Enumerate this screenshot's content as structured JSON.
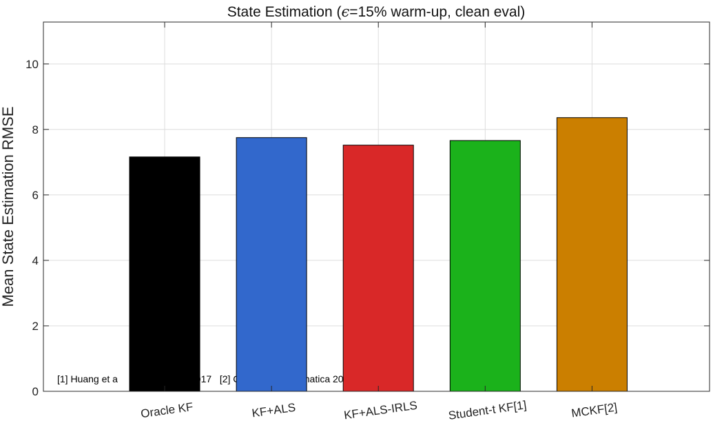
{
  "chart_data": {
    "type": "bar",
    "title_prefix": "State Estimation (",
    "title_symbol": "ϵ",
    "title_suffix": "=15% warm-up, clean eval)",
    "xlabel": "",
    "ylabel": "Mean State Estimation RMSE",
    "categories": [
      "Oracle KF",
      "KF+ALS",
      "KF+ALS-IRLS",
      "Student-t KF[1]",
      "MCKF[2]"
    ],
    "values": [
      7.16,
      7.75,
      7.52,
      7.66,
      8.36
    ],
    "colors": [
      "#000000",
      "#3268cc",
      "#d92828",
      "#1bb21b",
      "#cb7f00"
    ],
    "ylim": [
      0,
      11.28
    ],
    "yticks": [
      "0",
      "2",
      "4",
      "6",
      "8",
      "10"
    ],
    "grid": true,
    "annotation_left": "[1] Huang et a",
    "annotation_mid": "2017   [2] Chen et al. Automatica 2017"
  }
}
